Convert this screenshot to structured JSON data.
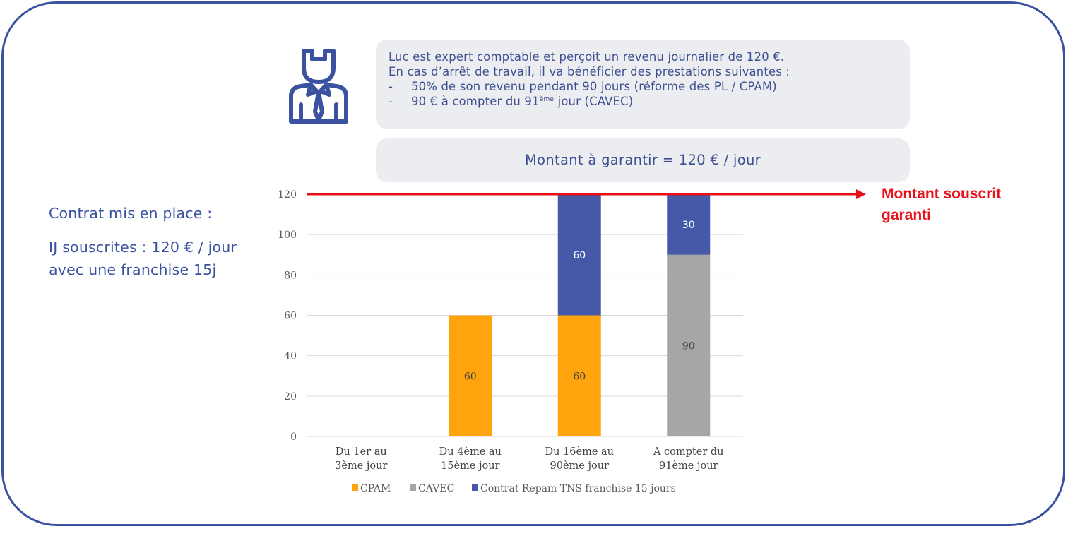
{
  "info": {
    "line1": "Luc est expert comptable et perçoit un revenu journalier de 120 €.",
    "line2": "En cas d’arrêt de travail, il va bénéficier des prestations suivantes :",
    "bullet_marker": "-",
    "bullet1": "50% de son revenu pendant 90 jours (réforme des PL / CPAM)",
    "bullet2_prefix": "90 € à compter du 91",
    "bullet2_sup": "ème",
    "bullet2_suffix": " jour (CAVEC)"
  },
  "amount_box": {
    "text": "Montant à garantir =  120 € / jour"
  },
  "left_note": {
    "heading": "Contrat mis en place :",
    "body": "IJ souscrites : 120 € / jour avec une franchise 15j"
  },
  "guarantee_label": {
    "line1": "Montant souscrit",
    "line2": "garanti"
  },
  "colors": {
    "cpam": "#ffa40c",
    "cavec": "#a6a6a6",
    "contrat": "#4559a8",
    "guarantee_line": "#e8121b",
    "accent": "#3b52a0"
  },
  "chart_data": {
    "type": "bar",
    "stacked": true,
    "categories": [
      [
        "Du 1er au",
        "3ème jour"
      ],
      [
        "Du 4ème au",
        "15ème jour"
      ],
      [
        "Du 16ème au",
        "90ème jour"
      ],
      [
        "A compter du",
        "91ème jour"
      ]
    ],
    "series": [
      {
        "name": "CPAM",
        "values": [
          0,
          60,
          60,
          0
        ]
      },
      {
        "name": "CAVEC",
        "values": [
          0,
          0,
          0,
          90
        ]
      },
      {
        "name": "Contrat Repam TNS franchise 15 jours",
        "values": [
          0,
          0,
          60,
          30
        ]
      }
    ],
    "ylim": [
      0,
      120
    ],
    "yticks": [
      0,
      20,
      40,
      60,
      80,
      100,
      120
    ],
    "reference_line": {
      "value": 120
    },
    "grid": true,
    "legend": "bottom",
    "title": "",
    "xlabel": "",
    "ylabel": ""
  }
}
